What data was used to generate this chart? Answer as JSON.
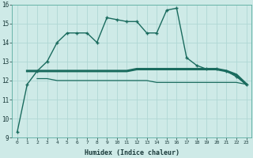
{
  "xlabel": "Humidex (Indice chaleur)",
  "background_color": "#ceeae7",
  "grid_color": "#b0d8d4",
  "line_color": "#1a6b5e",
  "xlim": [
    -0.5,
    23.5
  ],
  "ylim": [
    9,
    16
  ],
  "yticks": [
    9,
    10,
    11,
    12,
    13,
    14,
    15,
    16
  ],
  "xticks": [
    0,
    1,
    2,
    3,
    4,
    5,
    6,
    7,
    8,
    9,
    10,
    11,
    12,
    13,
    14,
    15,
    16,
    17,
    18,
    19,
    20,
    21,
    22,
    23
  ],
  "main_x": [
    0,
    1,
    2,
    3,
    4,
    5,
    6,
    7,
    8,
    9,
    10,
    11,
    12,
    13,
    14,
    15,
    16,
    17,
    18,
    19,
    20,
    21,
    22,
    23
  ],
  "main_y": [
    9.3,
    11.8,
    12.5,
    13.0,
    14.0,
    14.5,
    14.5,
    14.5,
    14.0,
    15.3,
    15.2,
    15.1,
    15.1,
    14.5,
    14.5,
    15.7,
    15.8,
    13.2,
    12.8,
    12.6,
    12.6,
    12.5,
    12.2,
    11.8
  ],
  "flat1_x": [
    1,
    2,
    3,
    4,
    5,
    6,
    7,
    8,
    9,
    10,
    11,
    12,
    13,
    14,
    15,
    16,
    17,
    18,
    19,
    20,
    21,
    22,
    23
  ],
  "flat1_y": [
    12.5,
    12.5,
    12.5,
    12.5,
    12.5,
    12.5,
    12.5,
    12.5,
    12.5,
    12.5,
    12.5,
    12.6,
    12.6,
    12.6,
    12.6,
    12.6,
    12.6,
    12.6,
    12.6,
    12.6,
    12.5,
    12.3,
    11.8
  ],
  "flat2_x": [
    2,
    3,
    4,
    5,
    6,
    7,
    8,
    9,
    10,
    11,
    12,
    13,
    14,
    15,
    16,
    17,
    18,
    19,
    20,
    21,
    22,
    23
  ],
  "flat2_y": [
    12.1,
    12.1,
    12.0,
    12.0,
    12.0,
    12.0,
    12.0,
    12.0,
    12.0,
    12.0,
    12.0,
    12.0,
    11.9,
    11.9,
    11.9,
    11.9,
    11.9,
    11.9,
    11.9,
    11.9,
    11.9,
    11.8
  ]
}
